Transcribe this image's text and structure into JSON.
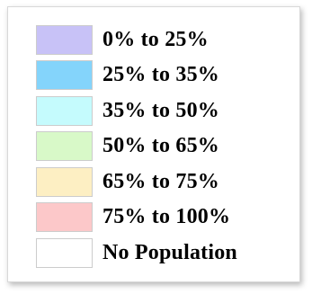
{
  "legend": {
    "items": [
      {
        "label": "0% to 25%",
        "color": "#c8c2f7"
      },
      {
        "label": "25% to 35%",
        "color": "#84d4fb"
      },
      {
        "label": "35% to 50%",
        "color": "#c5fbfd"
      },
      {
        "label": "50% to 65%",
        "color": "#d8f9c8"
      },
      {
        "label": "65% to 75%",
        "color": "#fdefc3"
      },
      {
        "label": "75% to 100%",
        "color": "#fcc8c9"
      },
      {
        "label": "No Population",
        "color": "#ffffff"
      }
    ]
  }
}
